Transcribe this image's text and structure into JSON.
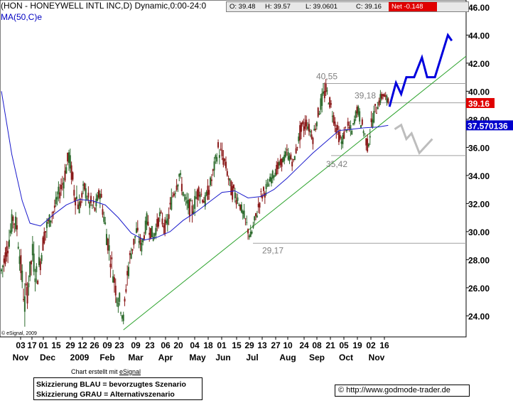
{
  "header": {
    "title": "(HON - HONEYWELL INTL INC,D) Dynamic,0:00-24:0",
    "ma_label": "MA(50,C)e"
  },
  "quote": {
    "open": "O: 39.48",
    "high": "H: 39.57",
    "low": "L: 39.0601",
    "close": "C: 39.16",
    "net": "Net -0.148"
  },
  "footer": {
    "copyright": "© eSignal, 2009",
    "created_prefix": "Chart erstellt mit ",
    "created_brand": "eSignal",
    "legend_blue": "Skizzierung BLAU = bevorzugtes Szenario",
    "legend_grey": "Skizzierung GRAU = Alternativszenario",
    "url": "© http://www.godmode-trader.de"
  },
  "colors": {
    "up_candle": "#2d6b2d",
    "down_candle": "#8b1a1a",
    "ma_line": "#1a1acc",
    "trendline": "#2aa22a",
    "blue_scenario": "#0000dd",
    "grey_scenario": "#bdbdbd",
    "price_tag": "#e00000",
    "ma_tag": "#0000cc"
  },
  "chart_data": {
    "type": "candlestick",
    "ylim": [
      22.5,
      46.5
    ],
    "ytick_labels": [
      "46.00",
      "44.00",
      "42.00",
      "40.00",
      "38.00",
      "36.00",
      "34.00",
      "32.00",
      "30.00",
      "28.00",
      "26.00",
      "24.00"
    ],
    "ytick_values": [
      46,
      44,
      42,
      40,
      38,
      36,
      34,
      32,
      30,
      28,
      26,
      24
    ],
    "x_days": [
      "03",
      "17",
      "01",
      "15",
      "29",
      "12",
      "26",
      "09",
      "23",
      "09",
      "23",
      "06",
      "20",
      "04",
      "18",
      "01",
      "15",
      "29",
      "13",
      "27",
      "10",
      "24",
      "08",
      "21",
      "05",
      "19",
      "02",
      "16"
    ],
    "x_months": [
      "Nov",
      "Dec",
      "2009",
      "Feb",
      "Mar",
      "Apr",
      "May",
      "Jun",
      "Jul",
      "Aug",
      "Sep",
      "Oct",
      "Nov"
    ],
    "date_range": [
      "2008-11-03",
      "2009-11-16"
    ],
    "price_marker": {
      "label": "39.16",
      "value": 39.16
    },
    "ma_marker": {
      "label": "37.570136",
      "value": 37.57
    },
    "annotations": [
      {
        "label": "40,55",
        "value": 40.55
      },
      {
        "label": "39,18",
        "value": 39.18
      },
      {
        "label": "35,42",
        "value": 35.42
      },
      {
        "label": "29,17",
        "value": 29.17
      }
    ],
    "horizontal_levels": [
      40.55,
      39.18,
      35.42,
      29.17
    ],
    "trendline": {
      "from": 23.0,
      "to": 42.5
    },
    "ohlc_samples": [
      {
        "d": 0,
        "o": 28.5,
        "h": 30.2,
        "l": 26.5,
        "c": 27.2
      },
      {
        "d": 3,
        "o": 27.0,
        "h": 29.0,
        "l": 25.8,
        "c": 28.3
      },
      {
        "d": 6,
        "o": 28.3,
        "h": 30.4,
        "l": 27.0,
        "c": 29.5
      },
      {
        "d": 9,
        "o": 29.4,
        "h": 31.8,
        "l": 28.7,
        "c": 31.0
      },
      {
        "d": 12,
        "o": 31.0,
        "h": 33.1,
        "l": 29.8,
        "c": 30.3
      },
      {
        "d": 15,
        "o": 30.3,
        "h": 31.0,
        "l": 26.5,
        "c": 27.4
      },
      {
        "d": 18,
        "o": 27.4,
        "h": 28.6,
        "l": 23.7,
        "c": 24.8
      },
      {
        "d": 21,
        "o": 24.8,
        "h": 27.0,
        "l": 23.4,
        "c": 26.5
      },
      {
        "d": 24,
        "o": 26.5,
        "h": 29.5,
        "l": 25.2,
        "c": 28.4
      },
      {
        "d": 27,
        "o": 28.4,
        "h": 30.0,
        "l": 25.6,
        "c": 26.8
      },
      {
        "d": 30,
        "o": 26.8,
        "h": 28.3,
        "l": 25.1,
        "c": 27.9
      },
      {
        "d": 33,
        "o": 27.9,
        "h": 30.4,
        "l": 27.0,
        "c": 29.8
      },
      {
        "d": 36,
        "o": 29.8,
        "h": 31.2,
        "l": 28.8,
        "c": 30.6
      },
      {
        "d": 40,
        "o": 30.6,
        "h": 32.1,
        "l": 30.0,
        "c": 31.4
      },
      {
        "d": 44,
        "o": 31.4,
        "h": 33.0,
        "l": 30.3,
        "c": 32.6
      },
      {
        "d": 48,
        "o": 32.6,
        "h": 34.5,
        "l": 31.4,
        "c": 33.7
      },
      {
        "d": 52,
        "o": 33.7,
        "h": 36.1,
        "l": 32.6,
        "c": 35.4
      },
      {
        "d": 56,
        "o": 35.4,
        "h": 36.3,
        "l": 32.4,
        "c": 33.0
      },
      {
        "d": 60,
        "o": 33.0,
        "h": 33.9,
        "l": 31.0,
        "c": 31.8
      },
      {
        "d": 64,
        "o": 31.8,
        "h": 33.8,
        "l": 31.2,
        "c": 33.1
      },
      {
        "d": 68,
        "o": 33.1,
        "h": 34.6,
        "l": 31.5,
        "c": 32.0
      },
      {
        "d": 72,
        "o": 32.0,
        "h": 33.2,
        "l": 31.0,
        "c": 31.6
      },
      {
        "d": 76,
        "o": 31.6,
        "h": 33.5,
        "l": 30.6,
        "c": 32.9
      },
      {
        "d": 80,
        "o": 32.9,
        "h": 33.4,
        "l": 29.8,
        "c": 30.4
      },
      {
        "d": 84,
        "o": 30.4,
        "h": 30.8,
        "l": 27.5,
        "c": 28.2
      },
      {
        "d": 88,
        "o": 28.2,
        "h": 28.8,
        "l": 25.4,
        "c": 26.0
      },
      {
        "d": 92,
        "o": 26.0,
        "h": 26.4,
        "l": 24.1,
        "c": 24.6
      },
      {
        "d": 94,
        "o": 24.6,
        "h": 25.0,
        "l": 23.0,
        "c": 23.8
      },
      {
        "d": 97,
        "o": 23.8,
        "h": 27.3,
        "l": 23.5,
        "c": 27.0
      },
      {
        "d": 100,
        "o": 27.0,
        "h": 28.9,
        "l": 26.5,
        "c": 28.5
      },
      {
        "d": 104,
        "o": 28.5,
        "h": 30.6,
        "l": 28.0,
        "c": 30.0
      },
      {
        "d": 108,
        "o": 30.0,
        "h": 30.4,
        "l": 28.3,
        "c": 28.9
      },
      {
        "d": 112,
        "o": 28.9,
        "h": 31.2,
        "l": 28.7,
        "c": 30.8
      },
      {
        "d": 117,
        "o": 30.8,
        "h": 31.0,
        "l": 29.0,
        "c": 29.6
      },
      {
        "d": 122,
        "o": 29.6,
        "h": 31.6,
        "l": 29.2,
        "c": 31.1
      },
      {
        "d": 127,
        "o": 31.1,
        "h": 32.4,
        "l": 29.7,
        "c": 30.2
      },
      {
        "d": 132,
        "o": 30.2,
        "h": 33.0,
        "l": 30.0,
        "c": 32.6
      },
      {
        "d": 137,
        "o": 32.6,
        "h": 34.6,
        "l": 32.2,
        "c": 34.1
      },
      {
        "d": 142,
        "o": 34.1,
        "h": 34.3,
        "l": 31.5,
        "c": 32.0
      },
      {
        "d": 147,
        "o": 32.0,
        "h": 33.6,
        "l": 30.8,
        "c": 31.5
      },
      {
        "d": 152,
        "o": 31.5,
        "h": 33.4,
        "l": 31.2,
        "c": 33.0
      },
      {
        "d": 157,
        "o": 33.0,
        "h": 34.1,
        "l": 31.6,
        "c": 32.1
      },
      {
        "d": 162,
        "o": 32.1,
        "h": 34.0,
        "l": 31.8,
        "c": 33.7
      },
      {
        "d": 167,
        "o": 33.7,
        "h": 36.2,
        "l": 33.3,
        "c": 35.9
      },
      {
        "d": 172,
        "o": 35.9,
        "h": 36.6,
        "l": 34.6,
        "c": 35.0
      },
      {
        "d": 177,
        "o": 35.0,
        "h": 35.4,
        "l": 32.6,
        "c": 33.0
      },
      {
        "d": 182,
        "o": 33.0,
        "h": 33.6,
        "l": 31.8,
        "c": 32.4
      },
      {
        "d": 187,
        "o": 32.4,
        "h": 32.9,
        "l": 30.6,
        "c": 31.0
      },
      {
        "d": 192,
        "o": 31.0,
        "h": 31.4,
        "l": 29.2,
        "c": 29.6
      },
      {
        "d": 196,
        "o": 29.6,
        "h": 31.3,
        "l": 29.17,
        "c": 31.0
      },
      {
        "d": 200,
        "o": 31.0,
        "h": 32.9,
        "l": 30.6,
        "c": 32.5
      },
      {
        "d": 205,
        "o": 32.5,
        "h": 33.6,
        "l": 32.0,
        "c": 33.2
      },
      {
        "d": 210,
        "o": 33.2,
        "h": 34.6,
        "l": 32.8,
        "c": 34.2
      },
      {
        "d": 215,
        "o": 34.2,
        "h": 35.2,
        "l": 33.6,
        "c": 34.8
      },
      {
        "d": 220,
        "o": 34.8,
        "h": 36.1,
        "l": 34.3,
        "c": 35.6
      },
      {
        "d": 225,
        "o": 35.6,
        "h": 35.8,
        "l": 34.4,
        "c": 34.9
      },
      {
        "d": 230,
        "o": 34.9,
        "h": 37.4,
        "l": 34.6,
        "c": 37.0
      },
      {
        "d": 235,
        "o": 37.0,
        "h": 38.2,
        "l": 36.5,
        "c": 37.8
      },
      {
        "d": 240,
        "o": 37.8,
        "h": 38.4,
        "l": 36.3,
        "c": 36.7
      },
      {
        "d": 245,
        "o": 36.7,
        "h": 39.1,
        "l": 36.4,
        "c": 38.8
      },
      {
        "d": 250,
        "o": 38.8,
        "h": 40.55,
        "l": 38.4,
        "c": 40.1
      },
      {
        "d": 254,
        "o": 40.1,
        "h": 40.5,
        "l": 38.5,
        "c": 38.9
      },
      {
        "d": 258,
        "o": 38.9,
        "h": 39.2,
        "l": 37.0,
        "c": 37.4
      },
      {
        "d": 262,
        "o": 37.4,
        "h": 37.8,
        "l": 35.8,
        "c": 36.3
      },
      {
        "d": 266,
        "o": 36.3,
        "h": 37.9,
        "l": 35.9,
        "c": 37.5
      },
      {
        "d": 270,
        "o": 37.5,
        "h": 38.1,
        "l": 36.8,
        "c": 37.1
      },
      {
        "d": 274,
        "o": 37.1,
        "h": 39.18,
        "l": 36.9,
        "c": 38.8
      },
      {
        "d": 278,
        "o": 38.8,
        "h": 39.0,
        "l": 37.2,
        "c": 37.6
      },
      {
        "d": 282,
        "o": 37.6,
        "h": 37.9,
        "l": 35.42,
        "c": 36.1
      },
      {
        "d": 286,
        "o": 36.1,
        "h": 38.4,
        "l": 35.8,
        "c": 38.0
      },
      {
        "d": 290,
        "o": 38.0,
        "h": 39.4,
        "l": 37.6,
        "c": 39.1
      },
      {
        "d": 294,
        "o": 39.1,
        "h": 40.2,
        "l": 38.6,
        "c": 39.8
      },
      {
        "d": 298,
        "o": 39.48,
        "h": 39.57,
        "l": 39.06,
        "c": 39.16
      }
    ],
    "ma50_samples": [
      {
        "d": 0,
        "v": 40.0
      },
      {
        "d": 8,
        "v": 35.5
      },
      {
        "d": 16,
        "v": 32.2
      },
      {
        "d": 22,
        "v": 30.6
      },
      {
        "d": 30,
        "v": 30.4
      },
      {
        "d": 40,
        "v": 31.2
      },
      {
        "d": 50,
        "v": 31.9
      },
      {
        "d": 60,
        "v": 32.3
      },
      {
        "d": 70,
        "v": 32.2
      },
      {
        "d": 80,
        "v": 31.9
      },
      {
        "d": 90,
        "v": 31.0
      },
      {
        "d": 100,
        "v": 29.9
      },
      {
        "d": 110,
        "v": 29.4
      },
      {
        "d": 120,
        "v": 29.6
      },
      {
        "d": 130,
        "v": 30.0
      },
      {
        "d": 140,
        "v": 30.8
      },
      {
        "d": 150,
        "v": 31.4
      },
      {
        "d": 160,
        "v": 32.1
      },
      {
        "d": 170,
        "v": 32.8
      },
      {
        "d": 180,
        "v": 32.9
      },
      {
        "d": 190,
        "v": 32.4
      },
      {
        "d": 200,
        "v": 32.5
      },
      {
        "d": 210,
        "v": 33.0
      },
      {
        "d": 220,
        "v": 33.8
      },
      {
        "d": 230,
        "v": 34.7
      },
      {
        "d": 240,
        "v": 35.6
      },
      {
        "d": 250,
        "v": 36.4
      },
      {
        "d": 260,
        "v": 37.2
      },
      {
        "d": 270,
        "v": 37.3
      },
      {
        "d": 280,
        "v": 37.4
      },
      {
        "d": 290,
        "v": 37.45
      },
      {
        "d": 298,
        "v": 37.57
      }
    ],
    "blue_scenario": [
      {
        "d": 299,
        "v": 38.9
      },
      {
        "d": 304,
        "v": 40.6
      },
      {
        "d": 308,
        "v": 39.8
      },
      {
        "d": 312,
        "v": 41.0
      },
      {
        "d": 318,
        "v": 41.0
      },
      {
        "d": 324,
        "v": 42.4
      },
      {
        "d": 328,
        "v": 41.0
      },
      {
        "d": 334,
        "v": 41.0
      },
      {
        "d": 344,
        "v": 44.0
      },
      {
        "d": 347,
        "v": 43.6
      }
    ],
    "grey_scenario": [
      {
        "d": 303,
        "v": 37.3
      },
      {
        "d": 308,
        "v": 37.6
      },
      {
        "d": 312,
        "v": 36.6
      },
      {
        "d": 316,
        "v": 37.0
      },
      {
        "d": 322,
        "v": 35.6
      },
      {
        "d": 332,
        "v": 36.6
      }
    ]
  }
}
